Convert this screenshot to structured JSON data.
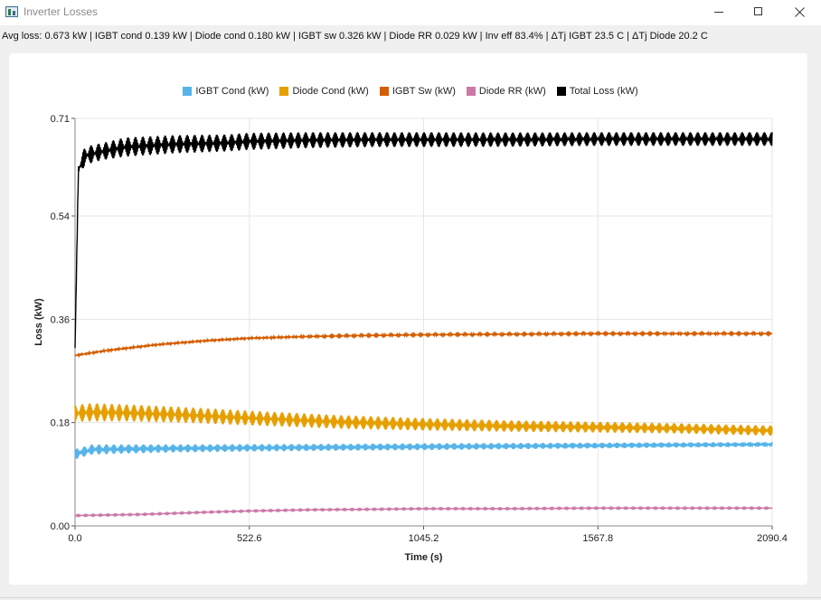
{
  "window": {
    "title": "Inverter Losses",
    "summary": "Avg loss: 0.673 kW | IGBT cond 0.139 kW | Diode cond 0.180 kW | IGBT sw 0.326 kW | Diode RR 0.029 kW | Inv eff 83.4% | ΔTj IGBT 23.5 C | ΔTj Diode 20.2 C"
  },
  "chart_data": {
    "type": "line",
    "xlabel": "Time (s)",
    "ylabel": "Loss (kW)",
    "xlim": [
      0,
      2090.4
    ],
    "ylim": [
      0,
      0.71
    ],
    "xticks": [
      "0.0",
      "522.6",
      "1045.2",
      "1567.8",
      "2090.4"
    ],
    "yticks": [
      "0.00",
      "0.18",
      "0.36",
      "0.54",
      "0.71"
    ],
    "grid": true,
    "legend_position": "top",
    "series": [
      {
        "name": "IGBT Cond (kW)",
        "color": "#56b4e9",
        "x": [
          0,
          50,
          150,
          300,
          522.6,
          800,
          1045.2,
          1300,
          1567.8,
          1800,
          2090.4
        ],
        "y": [
          0.125,
          0.133,
          0.134,
          0.135,
          0.136,
          0.137,
          0.138,
          0.139,
          0.14,
          0.141,
          0.142
        ],
        "band": [
          0.018,
          0.018,
          0.016,
          0.014,
          0.013,
          0.012,
          0.012,
          0.011,
          0.01,
          0.009,
          0.008
        ]
      },
      {
        "name": "Diode Cond (kW)",
        "color": "#e69f00",
        "x": [
          0,
          50,
          150,
          300,
          522.6,
          800,
          1045.2,
          1300,
          1567.8,
          1800,
          2090.4
        ],
        "y": [
          0.196,
          0.198,
          0.197,
          0.194,
          0.188,
          0.181,
          0.177,
          0.174,
          0.172,
          0.17,
          0.166
        ],
        "band": [
          0.03,
          0.032,
          0.03,
          0.028,
          0.026,
          0.024,
          0.022,
          0.02,
          0.019,
          0.018,
          0.018
        ]
      },
      {
        "name": "IGBT Sw (kW)",
        "color": "#d55e00",
        "x": [
          0,
          100,
          250,
          400,
          522.6,
          700,
          900,
          1045.2,
          1300,
          1567.8,
          1800,
          2090.4
        ],
        "y": [
          0.297,
          0.306,
          0.316,
          0.323,
          0.327,
          0.33,
          0.332,
          0.333,
          0.334,
          0.335,
          0.335,
          0.335
        ],
        "band": [
          0.004,
          0.004,
          0.004,
          0.004,
          0.004,
          0.003,
          0.003,
          0.003,
          0.003,
          0.003,
          0.003,
          0.003
        ]
      },
      {
        "name": "Diode RR (kW)",
        "color": "#cc79a7",
        "x": [
          0,
          200,
          400,
          522.6,
          700,
          900,
          1045.2,
          1300,
          1567.8,
          2090.4
        ],
        "y": [
          0.018,
          0.02,
          0.024,
          0.026,
          0.028,
          0.029,
          0.03,
          0.03,
          0.031,
          0.031
        ],
        "band": [
          0.002,
          0.002,
          0.002,
          0.002,
          0.002,
          0.002,
          0.002,
          0.002,
          0.002,
          0.002
        ]
      },
      {
        "name": "Total Loss (kW)",
        "color": "#000000",
        "x": [
          0,
          10,
          30,
          80,
          150,
          300,
          450,
          522.6,
          700,
          900,
          1045.2,
          1300,
          1567.8,
          1800,
          2090.4
        ],
        "y": [
          0.31,
          0.62,
          0.645,
          0.652,
          0.66,
          0.665,
          0.667,
          0.67,
          0.672,
          0.673,
          0.673,
          0.673,
          0.674,
          0.674,
          0.674
        ],
        "band": [
          0.0,
          0.03,
          0.032,
          0.03,
          0.034,
          0.032,
          0.03,
          0.03,
          0.028,
          0.026,
          0.026,
          0.025,
          0.024,
          0.024,
          0.024
        ]
      }
    ]
  }
}
